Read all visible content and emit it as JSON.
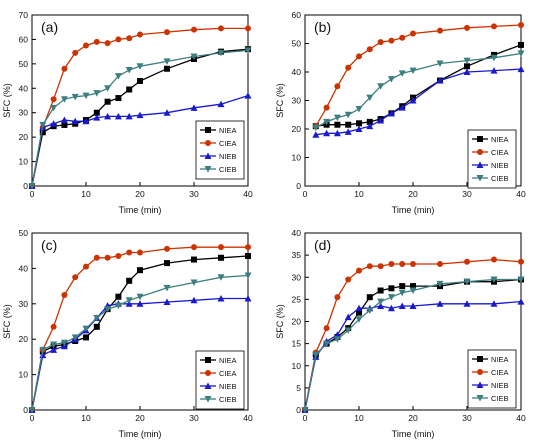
{
  "chart_data": [
    {
      "type": "line",
      "panel_label": "(a)",
      "xlabel": "Time (min)",
      "ylabel": "SFC (%)",
      "xlim": [
        0,
        40
      ],
      "ylim": [
        0,
        70
      ],
      "xticks": [
        0,
        10,
        20,
        30,
        40
      ],
      "yticks": [
        0,
        10,
        20,
        30,
        40,
        50,
        60,
        70
      ],
      "legend_position": "right-center",
      "series": [
        {
          "name": "NIEA",
          "color": "#000000",
          "marker": "square",
          "x": [
            0,
            2,
            4,
            6,
            8,
            10,
            12,
            14,
            16,
            18,
            20,
            25,
            30,
            35,
            40
          ],
          "y": [
            0,
            22,
            24.5,
            25,
            25.5,
            27,
            30,
            34.5,
            36,
            39.5,
            43,
            48,
            52,
            55,
            56
          ]
        },
        {
          "name": "CIEA",
          "color": "#cc3300",
          "marker": "circle",
          "x": [
            0,
            2,
            4,
            6,
            8,
            10,
            12,
            14,
            16,
            18,
            20,
            25,
            30,
            35,
            40
          ],
          "y": [
            0,
            24,
            35.5,
            48,
            54.5,
            57.5,
            59,
            58.5,
            60,
            60.5,
            62,
            63,
            64,
            64.5,
            64.5
          ]
        },
        {
          "name": "NIEB",
          "color": "#1a1acc",
          "marker": "triangle-up",
          "x": [
            0,
            2,
            4,
            6,
            8,
            10,
            12,
            14,
            16,
            18,
            20,
            25,
            30,
            35,
            40
          ],
          "y": [
            0,
            24,
            25.5,
            27,
            26.5,
            26.5,
            28,
            28.5,
            28.5,
            28.5,
            29,
            30,
            32,
            33.5,
            37
          ]
        },
        {
          "name": "CIEB",
          "color": "#3d7f80",
          "marker": "triangle-down",
          "x": [
            0,
            2,
            4,
            6,
            8,
            10,
            12,
            14,
            16,
            18,
            20,
            25,
            30,
            35,
            40
          ],
          "y": [
            0,
            25,
            32,
            35.5,
            36.5,
            37,
            38,
            40,
            45,
            47.5,
            49,
            51,
            53,
            54.5,
            55.5
          ]
        }
      ]
    },
    {
      "type": "line",
      "panel_label": "(b)",
      "xlabel": "Time (min)",
      "ylabel": "SFC (%)",
      "xlim": [
        0,
        40
      ],
      "ylim": [
        0,
        60
      ],
      "xticks": [
        0,
        10,
        20,
        30,
        40
      ],
      "yticks": [
        0,
        10,
        20,
        30,
        40,
        50,
        60
      ],
      "legend_position": "bottom-right",
      "series": [
        {
          "name": "NIEA",
          "color": "#000000",
          "marker": "square",
          "x": [
            2,
            4,
            6,
            8,
            10,
            12,
            14,
            16,
            18,
            20,
            25,
            30,
            35,
            40
          ],
          "y": [
            21,
            21.5,
            21.5,
            21.5,
            22,
            22.5,
            23.5,
            25.5,
            28,
            31,
            37,
            42,
            46,
            49.5
          ]
        },
        {
          "name": "CIEA",
          "color": "#cc3300",
          "marker": "circle",
          "x": [
            2,
            4,
            6,
            8,
            10,
            12,
            14,
            16,
            18,
            20,
            25,
            30,
            35,
            40
          ],
          "y": [
            21,
            27.5,
            35,
            41.5,
            45.5,
            48,
            50.5,
            51,
            52,
            53.5,
            54.5,
            55.5,
            56,
            56.5
          ]
        },
        {
          "name": "NIEB",
          "color": "#1a1acc",
          "marker": "triangle-up",
          "x": [
            2,
            4,
            6,
            8,
            10,
            12,
            14,
            16,
            18,
            20,
            25,
            30,
            35,
            40
          ],
          "y": [
            18,
            18.5,
            18.5,
            19,
            20,
            21,
            23,
            25.5,
            27.5,
            30,
            37,
            40,
            40.5,
            41
          ]
        },
        {
          "name": "CIEB",
          "color": "#3d7f80",
          "marker": "triangle-down",
          "x": [
            2,
            4,
            6,
            8,
            10,
            12,
            14,
            16,
            18,
            20,
            25,
            30,
            35,
            40
          ],
          "y": [
            20.5,
            22.5,
            24,
            25,
            27,
            31,
            35,
            37.5,
            39.5,
            40.5,
            43,
            44,
            45,
            46.5
          ]
        }
      ]
    },
    {
      "type": "line",
      "panel_label": "(c)",
      "xlabel": "Time (min)",
      "ylabel": "SFC (%)",
      "xlim": [
        0,
        40
      ],
      "ylim": [
        0,
        50
      ],
      "xticks": [
        0,
        10,
        20,
        30,
        40
      ],
      "yticks": [
        0,
        10,
        20,
        30,
        40,
        50
      ],
      "legend_position": "bottom-right",
      "series": [
        {
          "name": "NIEA",
          "color": "#000000",
          "marker": "square",
          "x": [
            0,
            2,
            4,
            6,
            8,
            10,
            12,
            14,
            16,
            18,
            20,
            25,
            30,
            35,
            40
          ],
          "y": [
            0,
            16.5,
            18,
            18.5,
            19.5,
            20.5,
            23.5,
            28.5,
            32,
            36.5,
            39.5,
            41.5,
            42.5,
            43,
            43.5
          ]
        },
        {
          "name": "CIEA",
          "color": "#cc3300",
          "marker": "circle",
          "x": [
            0,
            2,
            4,
            6,
            8,
            10,
            12,
            14,
            16,
            18,
            20,
            25,
            30,
            35,
            40
          ],
          "y": [
            0,
            17,
            23.5,
            32.5,
            37.5,
            40.5,
            43,
            43,
            43.5,
            44.5,
            44.5,
            45.5,
            46,
            46,
            46
          ]
        },
        {
          "name": "NIEB",
          "color": "#1a1acc",
          "marker": "triangle-up",
          "x": [
            0,
            2,
            4,
            6,
            8,
            10,
            12,
            14,
            16,
            18,
            20,
            25,
            30,
            35,
            40
          ],
          "y": [
            0,
            15.5,
            17,
            18,
            20,
            22.5,
            26,
            29.5,
            30,
            30,
            30,
            30.5,
            31,
            31.5,
            31.5
          ]
        },
        {
          "name": "CIEB",
          "color": "#3d7f80",
          "marker": "triangle-down",
          "x": [
            0,
            2,
            4,
            6,
            8,
            10,
            12,
            14,
            16,
            18,
            20,
            25,
            30,
            35,
            40
          ],
          "y": [
            0,
            17,
            18.5,
            19,
            20.5,
            23,
            26,
            28.5,
            29.5,
            31,
            32,
            34.5,
            36,
            37.5,
            38
          ]
        }
      ]
    },
    {
      "type": "line",
      "panel_label": "(d)",
      "xlabel": "Time (min)",
      "ylabel": "SFC (%)",
      "xlim": [
        0,
        40
      ],
      "ylim": [
        0,
        40
      ],
      "xticks": [
        0,
        10,
        20,
        30,
        40
      ],
      "yticks": [
        0,
        5,
        10,
        15,
        20,
        25,
        30,
        35,
        40
      ],
      "legend_position": "bottom-right",
      "series": [
        {
          "name": "NIEA",
          "color": "#000000",
          "marker": "square",
          "x": [
            0,
            2,
            4,
            6,
            8,
            10,
            12,
            14,
            16,
            18,
            20,
            25,
            30,
            35,
            40
          ],
          "y": [
            0,
            12.5,
            15,
            16.5,
            18.5,
            22,
            25.5,
            27,
            27.5,
            28,
            28,
            28,
            29,
            29,
            29.5
          ]
        },
        {
          "name": "CIEA",
          "color": "#cc3300",
          "marker": "circle",
          "x": [
            0,
            2,
            4,
            6,
            8,
            10,
            12,
            14,
            16,
            18,
            20,
            25,
            30,
            35,
            40
          ],
          "y": [
            0,
            13,
            18.5,
            25.5,
            29.5,
            31.5,
            32.5,
            32.5,
            33,
            33,
            33,
            33,
            33.5,
            34,
            33.5
          ]
        },
        {
          "name": "NIEB",
          "color": "#1a1acc",
          "marker": "triangle-up",
          "x": [
            0,
            2,
            4,
            6,
            8,
            10,
            12,
            14,
            16,
            18,
            20,
            25,
            30,
            35,
            40
          ],
          "y": [
            0,
            12,
            15.5,
            17,
            21,
            23,
            23,
            23.5,
            23,
            23.5,
            23.5,
            24,
            24,
            24,
            24.5
          ]
        },
        {
          "name": "CIEB",
          "color": "#3d7f80",
          "marker": "triangle-down",
          "x": [
            0,
            2,
            4,
            6,
            8,
            10,
            12,
            14,
            16,
            18,
            20,
            25,
            30,
            35,
            40
          ],
          "y": [
            0,
            12.5,
            15,
            16,
            18,
            20.5,
            22.5,
            24.5,
            25.5,
            26.5,
            27,
            28.5,
            29,
            29.5,
            29.5
          ]
        }
      ]
    }
  ]
}
